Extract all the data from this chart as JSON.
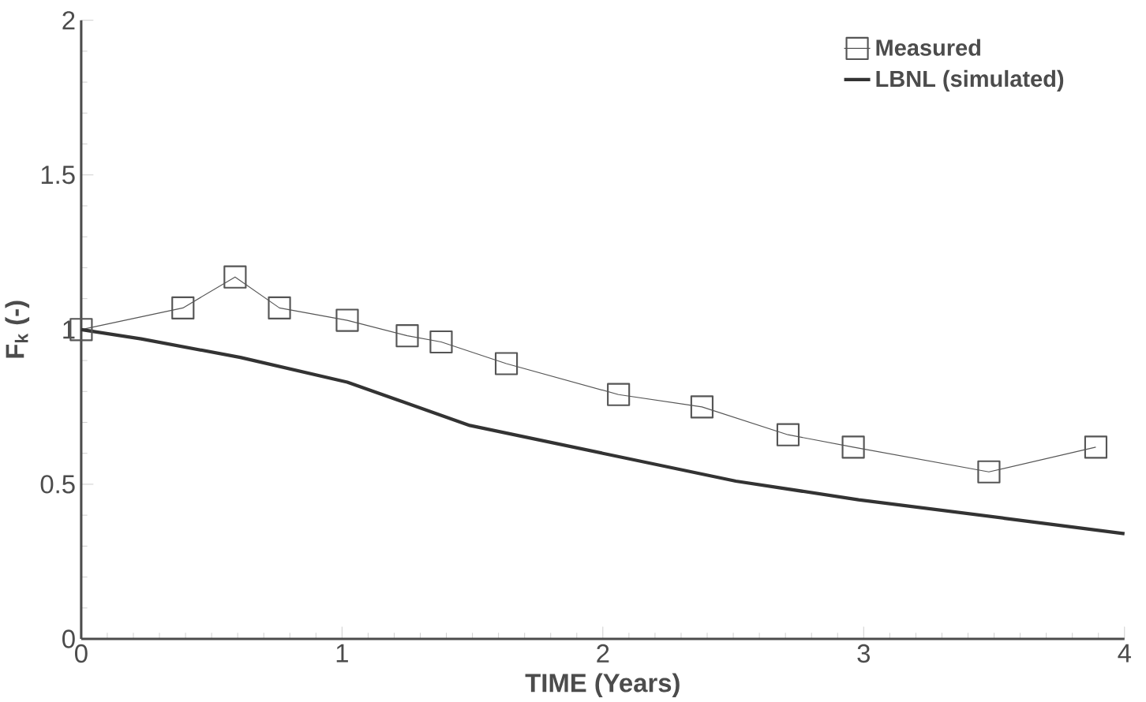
{
  "chart_data": {
    "type": "line",
    "xlabel": "TIME (Years)",
    "ylabel": "F$_{k}$ (-)",
    "xlim": [
      0,
      4
    ],
    "ylim": [
      0,
      2
    ],
    "xticks": [
      0,
      1,
      2,
      3,
      4
    ],
    "yticks": [
      0,
      0.5,
      1,
      1.5,
      2
    ],
    "legend": "top right",
    "series": [
      {
        "name": "Measured",
        "color": "#555555",
        "marker": "square",
        "x": [
          0,
          0.39,
          0.59,
          0.76,
          1.02,
          1.25,
          1.38,
          1.63,
          2.06,
          2.38,
          2.71,
          2.96,
          3.48,
          3.89
        ],
        "values": [
          1.0,
          1.07,
          1.17,
          1.07,
          1.03,
          0.98,
          0.96,
          0.89,
          0.79,
          0.75,
          0.66,
          0.62,
          0.54,
          0.62
        ]
      },
      {
        "name": "LBNL (simulated)",
        "color": "#333333",
        "marker": "none",
        "x": [
          0,
          0.23,
          0.61,
          1.02,
          1.49,
          2.0,
          2.51,
          2.98,
          3.54,
          4.0
        ],
        "values": [
          1.0,
          0.97,
          0.91,
          0.83,
          0.69,
          0.6,
          0.51,
          0.45,
          0.39,
          0.34
        ]
      }
    ]
  }
}
